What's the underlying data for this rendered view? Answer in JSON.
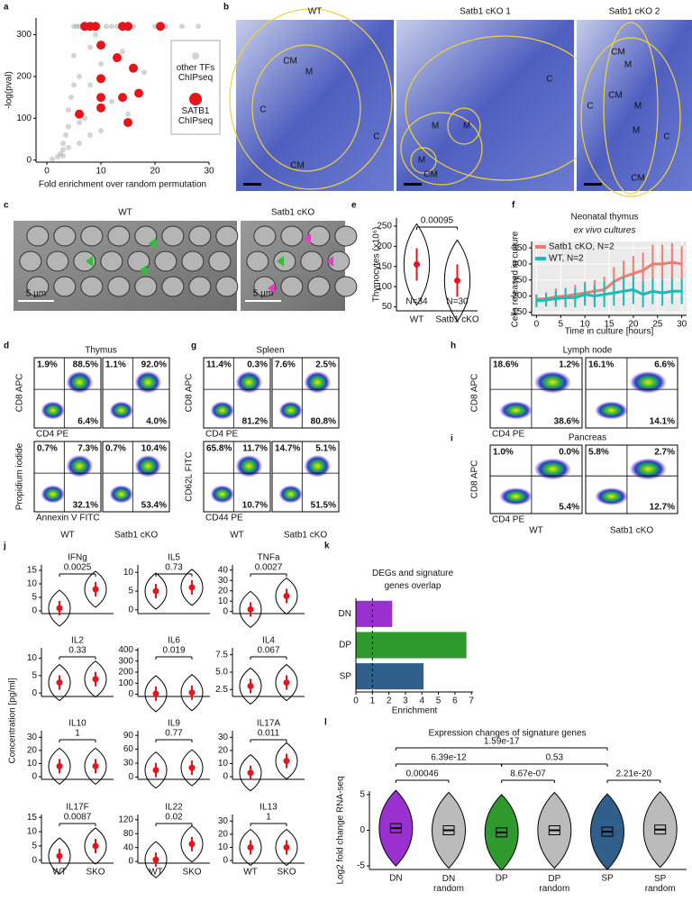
{
  "panel_labels": [
    "a",
    "b",
    "c",
    "e",
    "f",
    "d",
    "g",
    "h",
    "i",
    "j",
    "k",
    "l"
  ],
  "histology": {
    "images": [
      {
        "title": "WT",
        "labels": [
          "C",
          "CM",
          "M",
          "C",
          "CM"
        ]
      },
      {
        "title": "Satb1 cKO 1",
        "labels": [
          "M",
          "M",
          "M",
          "CM",
          "C"
        ]
      },
      {
        "title": "Satb1 cKO 2",
        "labels": [
          "CM",
          "M",
          "C",
          "CM",
          "M",
          "M",
          "C",
          "CM"
        ]
      }
    ]
  },
  "micrographs": {
    "images": [
      {
        "title": "WT"
      },
      {
        "title": "Satb1 cKO"
      }
    ],
    "scale_bar": "5 µm"
  },
  "flow": [
    {
      "title": "Thymus",
      "columns": [
        "WT",
        "Satb1 cKO"
      ],
      "rows": [
        {
          "ylabel": "CD8 APC",
          "xlabel": "CD4 PE",
          "plots": [
            [
              "1.9%",
              "88.5%",
              "6.4%"
            ],
            [
              "1.1%",
              "92.0%",
              "4.0%"
            ]
          ]
        },
        {
          "ylabel": "Propidium iodide",
          "xlabel": "Annexin V FITC",
          "plots": [
            [
              "0.7%",
              "7.3%",
              "32.1%"
            ],
            [
              "0.7%",
              "10.4%",
              "53.4%"
            ]
          ]
        }
      ]
    },
    {
      "title": "Spleen",
      "columns": [
        "WT",
        "Satb1 cKO"
      ],
      "rows": [
        {
          "ylabel": "CD8 APC",
          "xlabel": "CD4 PE",
          "plots": [
            [
              "11.4%",
              "0.3%",
              "81.2%"
            ],
            [
              "7.6%",
              "2.5%",
              "80.8%"
            ]
          ]
        },
        {
          "ylabel": "CD62L FITC",
          "xlabel": "CD44 PE",
          "plots": [
            [
              "65.8%",
              "11.7%",
              "10.7%"
            ],
            [
              "14.7%",
              "5.1%",
              "51.5%"
            ]
          ]
        }
      ]
    },
    {
      "title": "Lymph node",
      "rows": [
        {
          "ylabel": "CD8 APC",
          "xlabel": "CD4 PE",
          "plots": [
            [
              "18.6%",
              "1.2%",
              "38.6%"
            ],
            [
              "16.1%",
              "6.6%",
              "14.1%"
            ]
          ]
        }
      ]
    },
    {
      "title": "Pancreas",
      "columns": [
        "WT",
        "Satb1 cKO"
      ],
      "rows": [
        {
          "ylabel": "CD8 APC",
          "xlabel": "CD4 PE",
          "plots": [
            [
              "1.0%",
              "0.0%",
              "5.4%"
            ],
            [
              "5.8%",
              "2.7%",
              "12.7%"
            ]
          ]
        }
      ]
    }
  ],
  "chart_data": [
    {
      "type": "scatter",
      "xlabel": "Fold enrichment over random permutation",
      "ylabel": "-log(pval)",
      "xlim": [
        -2,
        30
      ],
      "ylim": [
        -5,
        340
      ],
      "xticks": [
        0,
        10,
        20,
        30
      ],
      "yticks": [
        0,
        100,
        200,
        300
      ],
      "series": [
        {
          "name": "other TFs ChIPseq",
          "color": "#a0a0a0",
          "x": [
            1,
            2,
            2.5,
            3,
            3,
            3.5,
            4,
            4,
            4.5,
            5,
            5,
            5.5,
            6,
            6,
            7,
            7,
            8,
            8,
            9,
            10,
            11,
            12,
            13,
            14,
            16,
            18,
            20,
            22,
            3,
            4,
            5,
            6,
            8,
            10,
            12,
            15,
            6,
            9,
            25,
            28
          ],
          "y": [
            2,
            8,
            15,
            25,
            40,
            60,
            80,
            120,
            150,
            180,
            250,
            320,
            320,
            200,
            320,
            100,
            270,
            60,
            320,
            230,
            320,
            140,
            320,
            260,
            320,
            210,
            320,
            320,
            10,
            30,
            320,
            90,
            180,
            70,
            320,
            110,
            40,
            300,
            320,
            320
          ]
        },
        {
          "name": "SATB1 ChIPseq",
          "color": "#e8141b",
          "x": [
            7,
            8,
            9,
            14,
            15,
            21,
            10,
            13,
            16,
            10,
            10,
            14,
            17,
            6,
            10,
            15
          ],
          "y": [
            320,
            320,
            320,
            320,
            320,
            320,
            275,
            245,
            220,
            195,
            150,
            150,
            160,
            110,
            125,
            90
          ]
        }
      ]
    },
    {
      "type": "violin",
      "ylabel": "Thymocytes (x10⁶)",
      "categories": [
        "WT",
        "Satb1 cKO"
      ],
      "values": [
        155,
        115
      ],
      "n_labels": [
        "N=34",
        "N=30"
      ],
      "p": 0.00095,
      "ylim": [
        40,
        270
      ],
      "yticks": [
        50,
        100,
        150,
        200,
        250
      ]
    },
    {
      "type": "line",
      "title": "Neonatal thymus",
      "subtitle": "ex vivo cultures",
      "xlabel": "Time in culture [hours]",
      "ylabel": "Cells released in culture",
      "x": [
        0,
        2,
        4,
        6,
        8,
        10,
        12,
        14,
        16,
        18,
        20,
        22,
        24,
        26,
        28,
        30
      ],
      "xlim": [
        -1,
        31
      ],
      "ylim": [
        140,
        370
      ],
      "xticks": [
        0,
        5,
        10,
        15,
        20,
        25,
        30
      ],
      "yticks": [
        150,
        200,
        250,
        300,
        350
      ],
      "grid": true,
      "series": [
        {
          "name": "Satb1 cKO, N=2",
          "color": "#f07b72",
          "values": [
            190,
            192,
            198,
            200,
            205,
            210,
            215,
            220,
            245,
            260,
            270,
            280,
            300,
            300,
            305,
            300
          ],
          "errors": [
            15,
            20,
            25,
            25,
            30,
            35,
            35,
            40,
            45,
            50,
            55,
            55,
            60,
            60,
            60,
            55
          ]
        },
        {
          "name": "WT, N=2",
          "color": "#1bbcb8",
          "values": [
            185,
            188,
            192,
            195,
            195,
            205,
            200,
            205,
            210,
            215,
            220,
            205,
            215,
            210,
            215,
            215
          ],
          "errors": [
            20,
            20,
            25,
            30,
            30,
            35,
            35,
            40,
            40,
            45,
            45,
            40,
            40,
            40,
            40,
            40
          ]
        }
      ]
    },
    {
      "type": "violin",
      "ylabel": "Concentration [pg/ml]",
      "categories": [
        "WT",
        "SKO"
      ],
      "panels": [
        {
          "title": "IFNg",
          "p": 0.0025,
          "values": [
            1,
            8
          ],
          "ylim": [
            -1,
            17
          ],
          "yticks": [
            0,
            5,
            10,
            15
          ]
        },
        {
          "title": "IL5",
          "p": 0.73,
          "values": [
            5,
            6
          ],
          "ylim": [
            -1,
            12
          ],
          "yticks": [
            0,
            5,
            10
          ]
        },
        {
          "title": "TNFa",
          "p": 0.0027,
          "values": [
            2,
            15
          ],
          "ylim": [
            -2,
            45
          ],
          "yticks": [
            0,
            10,
            20,
            30,
            40
          ]
        },
        {
          "title": "IL2",
          "p": 0.33,
          "values": [
            3,
            4
          ],
          "ylim": [
            -1,
            13
          ],
          "yticks": [
            0,
            5,
            10
          ]
        },
        {
          "title": "IL6",
          "p": 0.019,
          "values": [
            5,
            15
          ],
          "ylim": [
            -20,
            420
          ],
          "yticks": [
            0,
            100,
            200,
            300,
            400
          ]
        },
        {
          "title": "IL4",
          "p": 0.067,
          "values": [
            3,
            3.5
          ],
          "ylim": [
            1.5,
            8.5
          ],
          "yticks": [
            2.5,
            {
              "value": 5,
              "label": "5.0"
            },
            7.5
          ]
        },
        {
          "title": "IL10",
          "p": 1,
          "values": [
            8,
            8
          ],
          "ylim": [
            -2,
            35
          ],
          "yticks": [
            0,
            10,
            20,
            30
          ]
        },
        {
          "title": "IL9",
          "p": 0.77,
          "values": [
            15,
            20
          ],
          "ylim": [
            -5,
            100
          ],
          "yticks": [
            0,
            30,
            60,
            90
          ]
        },
        {
          "title": "IL17A",
          "p": 0.011,
          "values": [
            3,
            12
          ],
          "ylim": [
            -2,
            35
          ],
          "yticks": [
            0,
            10,
            20,
            30
          ]
        },
        {
          "title": "IL17F",
          "p": 0.0087,
          "values": [
            1.5,
            5
          ],
          "ylim": [
            -1,
            16
          ],
          "yticks": [
            0,
            5,
            10,
            15
          ]
        },
        {
          "title": "IL22",
          "p": 0.02,
          "values": [
            5,
            50
          ],
          "ylim": [
            -5,
            135
          ],
          "yticks": [
            0,
            40,
            80,
            120
          ]
        },
        {
          "title": "IL13",
          "p": 1,
          "values": [
            10,
            10
          ],
          "ylim": [
            -2,
            35
          ],
          "yticks": [
            0,
            10,
            20,
            30
          ]
        }
      ]
    },
    {
      "type": "bar",
      "orientation": "horizontal",
      "title": "DEGs and signature genes overlap",
      "xlabel": "Enrichment",
      "categories": [
        "DN",
        "DP",
        "SP"
      ],
      "values": [
        2.2,
        6.7,
        4.1
      ],
      "colors": [
        "#9b30d0",
        "#2e9a2e",
        "#2f5f8a"
      ],
      "xlim": [
        0,
        7.1
      ],
      "xticks": [
        0,
        1,
        2,
        3,
        4,
        5,
        6,
        7
      ],
      "reference_line": 1
    },
    {
      "type": "violin",
      "title": "Expression changes of signature genes",
      "ylabel": "Log2 fold change RNA-seq",
      "categories": [
        "DN",
        "DN random",
        "DP",
        "DP random",
        "SP",
        "SP random"
      ],
      "values": [
        0.3,
        0,
        -0.3,
        0,
        -0.2,
        0.1
      ],
      "colors": [
        "#9b30d0",
        "#bbbbbb",
        "#2e9a2e",
        "#bbbbbb",
        "#2f5f8a",
        "#bbbbbb"
      ],
      "ylim": [
        -5.5,
        5.5
      ],
      "yticks": [
        -5,
        0,
        5
      ],
      "comparisons": [
        "1.59e-17",
        "6.39e-12",
        "0.53",
        "0.00046",
        "8.67e-07",
        "2.21e-20"
      ]
    }
  ]
}
